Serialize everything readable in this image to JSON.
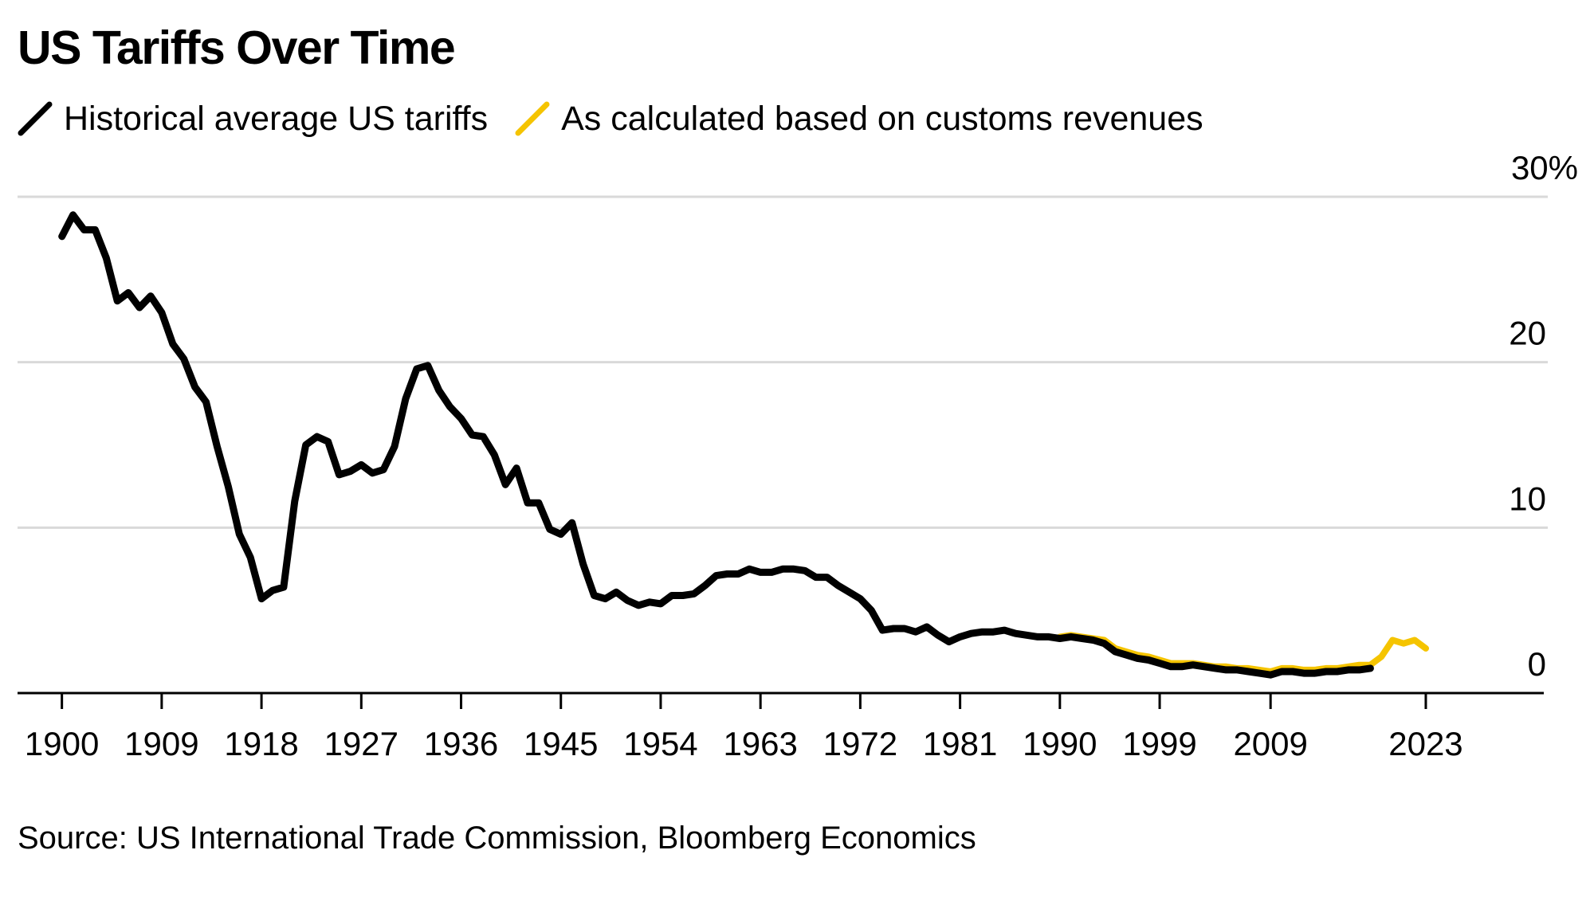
{
  "chart_data": {
    "type": "line",
    "title": "US Tariffs Over Time",
    "source": "Source: US International Trade Commission, Bloomberg Economics",
    "x_ticks": [
      "1900",
      "1909",
      "1918",
      "1927",
      "1936",
      "1945",
      "1954",
      "1963",
      "1972",
      "1981",
      "1990",
      "1999",
      "2009",
      "2023"
    ],
    "y_ticks": [
      {
        "value": 30,
        "label": "30%"
      },
      {
        "value": 20,
        "label": "20"
      },
      {
        "value": 10,
        "label": "10"
      },
      {
        "value": 0,
        "label": "0"
      }
    ],
    "xlim": [
      1896,
      2034
    ],
    "ylim": [
      0,
      30
    ],
    "grid": true,
    "legend_position": "top-left",
    "series": [
      {
        "name": "Historical average US tariffs",
        "color": "#000000",
        "x": [
          1900,
          1901,
          1902,
          1903,
          1904,
          1905,
          1906,
          1907,
          1908,
          1909,
          1910,
          1911,
          1912,
          1913,
          1914,
          1915,
          1916,
          1917,
          1918,
          1919,
          1920,
          1921,
          1922,
          1923,
          1924,
          1925,
          1926,
          1927,
          1928,
          1929,
          1930,
          1931,
          1932,
          1933,
          1934,
          1935,
          1936,
          1937,
          1938,
          1939,
          1940,
          1941,
          1942,
          1943,
          1944,
          1945,
          1946,
          1947,
          1948,
          1949,
          1950,
          1951,
          1952,
          1953,
          1954,
          1955,
          1956,
          1957,
          1958,
          1959,
          1960,
          1961,
          1962,
          1963,
          1964,
          1965,
          1966,
          1967,
          1968,
          1969,
          1970,
          1971,
          1972,
          1973,
          1974,
          1975,
          1976,
          1977,
          1978,
          1979,
          1980,
          1981,
          1982,
          1983,
          1984,
          1985,
          1986,
          1987,
          1988,
          1989,
          1990,
          1991,
          1992,
          1993,
          1994,
          1995,
          1996,
          1997,
          1998,
          1999,
          2000,
          2001,
          2002,
          2003,
          2004,
          2005,
          2006,
          2007,
          2008,
          2009,
          2010,
          2011,
          2012,
          2013,
          2014,
          2015,
          2016,
          2017,
          2018
        ],
        "values": [
          27.6,
          28.9,
          28.0,
          28.0,
          26.3,
          23.7,
          24.2,
          23.3,
          24.0,
          23.0,
          21.1,
          20.2,
          18.5,
          17.6,
          14.9,
          12.5,
          9.6,
          8.2,
          5.7,
          6.2,
          6.4,
          11.6,
          15.0,
          15.5,
          15.2,
          13.2,
          13.4,
          13.8,
          13.3,
          13.5,
          14.9,
          17.8,
          19.6,
          19.8,
          18.3,
          17.3,
          16.6,
          15.6,
          15.5,
          14.4,
          12.6,
          13.6,
          11.5,
          11.5,
          9.9,
          9.6,
          10.3,
          7.8,
          5.9,
          5.7,
          6.1,
          5.6,
          5.3,
          5.5,
          5.4,
          5.9,
          5.9,
          6.0,
          6.5,
          7.1,
          7.2,
          7.2,
          7.5,
          7.3,
          7.3,
          7.5,
          7.5,
          7.4,
          7.0,
          7.0,
          6.5,
          6.1,
          5.7,
          5.0,
          3.8,
          3.9,
          3.9,
          3.7,
          4.0,
          3.5,
          3.1,
          3.4,
          3.6,
          3.7,
          3.7,
          3.8,
          3.6,
          3.5,
          3.4,
          3.4,
          3.3,
          3.4,
          3.3,
          3.2,
          3.0,
          2.5,
          2.3,
          2.1,
          2.0,
          1.8,
          1.6,
          1.6,
          1.7,
          1.6,
          1.5,
          1.4,
          1.4,
          1.3,
          1.2,
          1.1,
          1.3,
          1.3,
          1.2,
          1.2,
          1.3,
          1.3,
          1.4,
          1.4,
          1.5
        ]
      },
      {
        "name": "As calculated based on customs revenues",
        "color": "#f5c400",
        "x": [
          1990,
          1991,
          1992,
          1993,
          1994,
          1995,
          1996,
          1997,
          1998,
          1999,
          2000,
          2001,
          2002,
          2003,
          2004,
          2005,
          2006,
          2007,
          2008,
          2009,
          2010,
          2011,
          2012,
          2013,
          2014,
          2015,
          2016,
          2017,
          2018,
          2019,
          2020,
          2021,
          2022,
          2023
        ],
        "values": [
          3.4,
          3.5,
          3.4,
          3.3,
          3.2,
          2.7,
          2.5,
          2.3,
          2.2,
          2.0,
          1.8,
          1.8,
          1.8,
          1.7,
          1.6,
          1.6,
          1.5,
          1.5,
          1.4,
          1.3,
          1.5,
          1.5,
          1.4,
          1.4,
          1.5,
          1.5,
          1.6,
          1.7,
          1.7,
          2.2,
          3.2,
          3.0,
          3.2,
          2.7
        ]
      }
    ]
  }
}
